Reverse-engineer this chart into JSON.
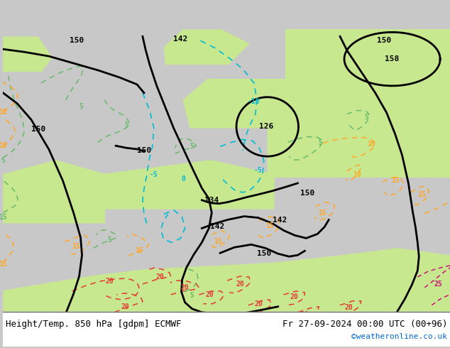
{
  "title_left": "Height/Temp. 850 hPa [gdpm] ECMWF",
  "title_right": "Fr 27-09-2024 00:00 UTC (00+96)",
  "credit": "©weatheronline.co.uk",
  "bg_color": "#c8c8c8",
  "green_color": "#c8e890",
  "white_color": "#ffffff",
  "font_color": "#000000",
  "credit_color": "#0066cc",
  "black_line_color": "#000000",
  "cyan_color": "#00bcd4",
  "green_line_color": "#66bb6a",
  "orange_color": "#ffa726",
  "red_color": "#e53935",
  "magenta_color": "#cc1177",
  "title_font_size": 9,
  "credit_font_size": 8,
  "label_font_size": 7,
  "black_label_font_size": 8
}
